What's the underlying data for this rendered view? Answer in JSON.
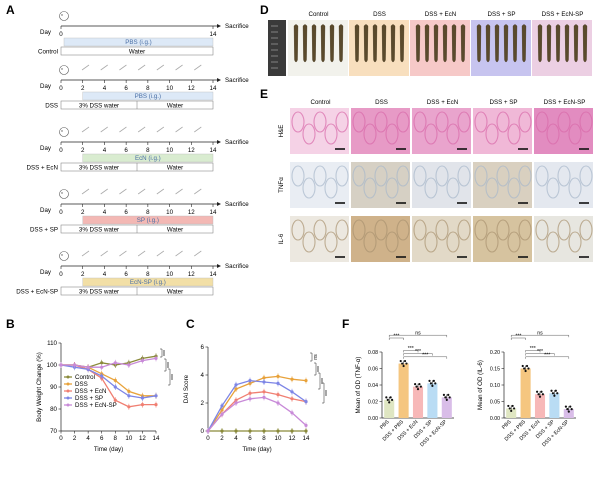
{
  "panel_labels": {
    "A": "A",
    "B": "B",
    "C": "C",
    "D": "D",
    "E": "E",
    "F": "F"
  },
  "timeline": {
    "day_label": "Day",
    "sacrifice": "Sacrifice",
    "groups": [
      {
        "name": "Control",
        "treatment": "PBS (i.g.)",
        "water_a": "Water",
        "water_b": "",
        "treat_color": "#dde9f7"
      },
      {
        "name": "DSS",
        "treatment": "PBS (i.g.)",
        "water_a": "3% DSS water",
        "water_b": "Water",
        "treat_color": "#dde9f7"
      },
      {
        "name": "DSS + EcN",
        "treatment": "EcN (i.g.)",
        "water_a": "3% DSS water",
        "water_b": "Water",
        "treat_color": "#d9ecd0"
      },
      {
        "name": "DSS + SP",
        "treatment": "SP (i.g.)",
        "water_a": "3% DSS water",
        "water_b": "Water",
        "treat_color": "#f3b8b4"
      },
      {
        "name": "DSS + EcN-SP",
        "treatment": "EcN-SP (i.g.)",
        "water_a": "3% DSS water",
        "water_b": "Water",
        "treat_color": "#f2dfa6"
      }
    ],
    "ticks_full": [
      "0",
      "2",
      "4",
      "6",
      "8",
      "10",
      "12",
      "14"
    ],
    "ticks_control": [
      "0",
      "14"
    ]
  },
  "colon_panel": {
    "columns": [
      {
        "label": "Control",
        "bg": "#f2f2ec"
      },
      {
        "label": "DSS",
        "bg": "#f8dfbe"
      },
      {
        "label": "DSS + EcN",
        "bg": "#f6c9c8"
      },
      {
        "label": "DSS + SP",
        "bg": "#c7c4ef"
      },
      {
        "label": "DSS + EcN-SP",
        "bg": "#eccfe3"
      }
    ]
  },
  "histology": {
    "columns": [
      "Control",
      "DSS",
      "DSS + EcN",
      "DSS + SP",
      "DSS + EcN-SP"
    ],
    "rows": [
      "H&E",
      "TNFα",
      "IL-6"
    ]
  },
  "chart_data": [
    {
      "type": "line",
      "panel": "B",
      "xlabel": "Time (day)",
      "ylabel": "Body Weight Change (%)",
      "x": [
        0,
        2,
        4,
        6,
        8,
        10,
        12,
        14
      ],
      "xlim": [
        0,
        14
      ],
      "ylim": [
        70,
        110
      ],
      "yticks": [
        70,
        80,
        90,
        100,
        110
      ],
      "legend_position": "bottom-left",
      "significance": [
        "***",
        "***",
        "***"
      ],
      "series": [
        {
          "name": "Control",
          "color": "#8a8a3a",
          "values": [
            100,
            100,
            99,
            101,
            100,
            101,
            103,
            104
          ]
        },
        {
          "name": "DSS",
          "color": "#e8a23a",
          "values": [
            100,
            100,
            99,
            96,
            93,
            88,
            86,
            86
          ]
        },
        {
          "name": "DSS + EcN",
          "color": "#f07f72",
          "values": [
            100,
            100,
            98,
            94,
            84,
            81,
            82,
            82
          ]
        },
        {
          "name": "DSS + SP",
          "color": "#7d85e6",
          "values": [
            100,
            99,
            98,
            95,
            90,
            86,
            85,
            86
          ]
        },
        {
          "name": "DSS + EcN-SP",
          "color": "#c88ad8",
          "values": [
            100,
            100,
            99,
            99,
            101,
            100,
            102,
            103
          ]
        }
      ]
    },
    {
      "type": "line",
      "panel": "C",
      "xlabel": "Time (day)",
      "ylabel": "DAI Score",
      "x": [
        0,
        2,
        4,
        6,
        8,
        10,
        12,
        14
      ],
      "xlim": [
        0,
        14
      ],
      "ylim": [
        0,
        6
      ],
      "yticks": [
        0,
        2,
        4,
        6
      ],
      "significance": [
        "ns",
        "***",
        "***",
        "***"
      ],
      "series": [
        {
          "name": "Control",
          "color": "#8a8a3a",
          "values": [
            0,
            0,
            0,
            0,
            0,
            0,
            0,
            0
          ]
        },
        {
          "name": "DSS",
          "color": "#e8a23a",
          "values": [
            0,
            1.5,
            3.0,
            3.4,
            3.8,
            3.9,
            3.7,
            3.6
          ]
        },
        {
          "name": "DSS + EcN",
          "color": "#f07f72",
          "values": [
            0,
            1.2,
            2.2,
            2.7,
            2.8,
            2.6,
            2.3,
            2.1
          ]
        },
        {
          "name": "DSS + SP",
          "color": "#7d85e6",
          "values": [
            0,
            1.8,
            3.3,
            3.6,
            3.5,
            3.4,
            2.8,
            2.1
          ]
        },
        {
          "name": "DSS + EcN-SP",
          "color": "#c88ad8",
          "values": [
            0,
            1.2,
            2.0,
            2.3,
            2.4,
            2.0,
            1.3,
            0.4
          ]
        }
      ]
    },
    {
      "type": "bar",
      "panel": "F-left",
      "ylabel": "Mean of OD (TNF-α)",
      "categories": [
        "PBS",
        "DSS + PBS",
        "DSS + EcN",
        "DSS + SP",
        "DSS + EcN-SP"
      ],
      "values": [
        0.022,
        0.066,
        0.038,
        0.042,
        0.025
      ],
      "colors": [
        "#dfe6c2",
        "#f5c680",
        "#f7b8b8",
        "#b9dcf4",
        "#d9bde8"
      ],
      "ylim": [
        0,
        0.08
      ],
      "yticks": [
        "0.00",
        "0.02",
        "0.04",
        "0.06",
        "0.08"
      ],
      "significance": [
        "***",
        "ns",
        "***",
        "***",
        "***"
      ]
    },
    {
      "type": "bar",
      "panel": "F-right",
      "ylabel": "Mean of OD (IL-6)",
      "categories": [
        "PBS",
        "DSS + PBS",
        "DSS + EcN",
        "DSS + SP",
        "DSS + EcN-SP"
      ],
      "values": [
        0.029,
        0.15,
        0.072,
        0.075,
        0.027
      ],
      "colors": [
        "#dfe6c2",
        "#f5c680",
        "#f7b8b8",
        "#b9dcf4",
        "#d9bde8"
      ],
      "ylim": [
        0,
        0.2
      ],
      "yticks": [
        "0.00",
        "0.05",
        "0.10",
        "0.15",
        "0.20"
      ],
      "significance": [
        "***",
        "ns",
        "***",
        "***",
        "***"
      ]
    }
  ]
}
